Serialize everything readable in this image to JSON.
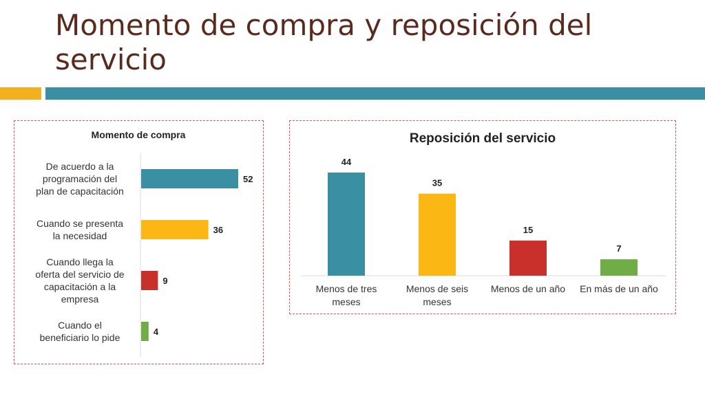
{
  "slide": {
    "title_line1": "Momento de compra y reposición del",
    "title_line2": "servicio"
  },
  "colors": {
    "title": "#5b2a1f",
    "accent_orange": "#f2b01e",
    "accent_teal": "#3a8fa3",
    "panel_border": "#d9534f"
  },
  "chart_data": [
    {
      "type": "bar",
      "orientation": "horizontal",
      "title": "Momento de compra",
      "categories": [
        [
          "De acuerdo a la",
          "programación del",
          "plan de capacitación"
        ],
        [
          "Cuando se presenta",
          "la necesidad"
        ],
        [
          "Cuando llega la",
          "oferta del servicio de",
          "capacitación a la",
          "empresa"
        ],
        [
          "Cuando el",
          "beneficiario lo pide"
        ]
      ],
      "values": [
        52,
        36,
        9,
        4
      ],
      "data_labels": [
        "52",
        "36",
        "9",
        "4"
      ],
      "colors": [
        "#3a8fa3",
        "#fbb713",
        "#c9302c",
        "#70ad47"
      ],
      "xlim": [
        0,
        60
      ],
      "grid": false,
      "legend": "none"
    },
    {
      "type": "bar",
      "orientation": "vertical",
      "title": "Reposición del servicio",
      "categories": [
        [
          "Menos de tres",
          "meses"
        ],
        [
          "Menos de seis",
          "meses"
        ],
        [
          "Menos de un año"
        ],
        [
          "En más de un año"
        ]
      ],
      "values": [
        44,
        35,
        15,
        7
      ],
      "data_labels": [
        "44",
        "35",
        "15",
        "7"
      ],
      "colors": [
        "#3a8fa3",
        "#fbb713",
        "#c9302c",
        "#70ad47"
      ],
      "ylim": [
        0,
        50
      ],
      "grid": false,
      "legend": "none"
    }
  ]
}
